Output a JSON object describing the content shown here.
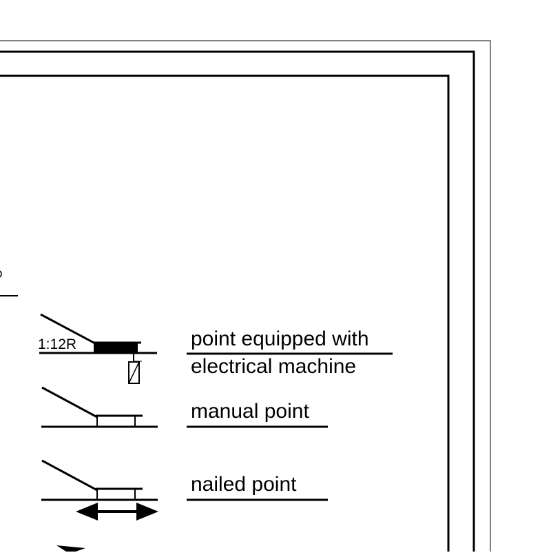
{
  "legend": {
    "items": [
      {
        "id": "electrical",
        "label_lines": [
          "point equipped with",
          "electrical machine"
        ],
        "symbol_label": "1:12R"
      },
      {
        "id": "manual",
        "label_lines": [
          "manual point"
        ]
      },
      {
        "id": "nailed",
        "label_lines": [
          "nailed point"
        ]
      }
    ]
  },
  "colors": {
    "ink": "#000000",
    "background": "#ffffff"
  }
}
